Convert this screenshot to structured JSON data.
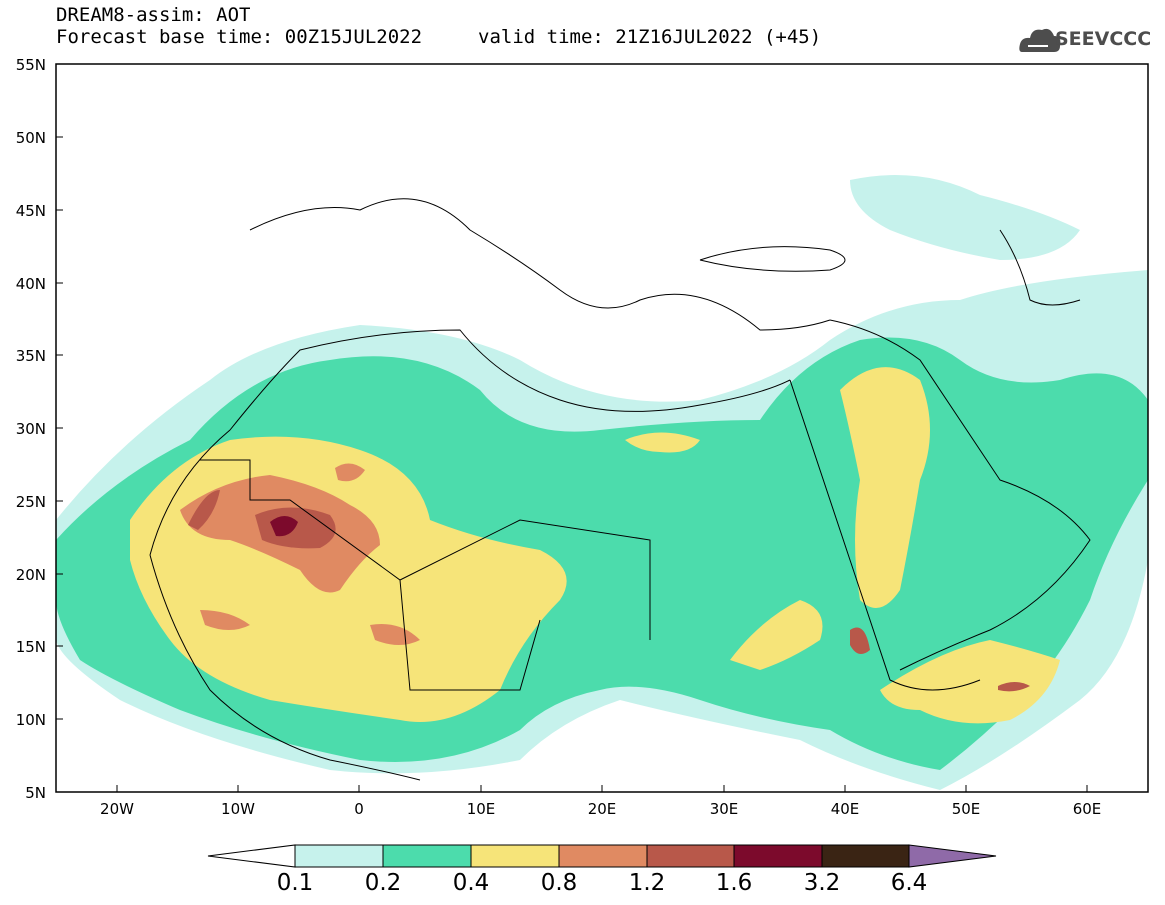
{
  "header": {
    "title": "DREAM8-assim: AOT",
    "base_time": "Forecast base time: 00Z15JUL2022",
    "valid_time": "valid time: 21Z16JUL2022 (+45)"
  },
  "logo": {
    "text": "SEEVCCC",
    "icon": "cloud-logo-icon"
  },
  "axes": {
    "lat_labels": [
      "55N",
      "50N",
      "45N",
      "40N",
      "35N",
      "30N",
      "25N",
      "20N",
      "15N",
      "10N",
      "5N"
    ],
    "lon_labels": [
      "20W",
      "10W",
      "0",
      "10E",
      "20E",
      "30E",
      "40E",
      "50E",
      "60E"
    ]
  },
  "colorbar": {
    "labels": [
      "0.1",
      "0.2",
      "0.4",
      "0.8",
      "1.2",
      "1.6",
      "3.2",
      "6.4"
    ],
    "colors": [
      "#c6f2ec",
      "#4cdcac",
      "#f6e479",
      "#e08a62",
      "#b8584a",
      "#7c0a2c",
      "#3a2414",
      "#8f6aa8"
    ]
  },
  "map_colors": {
    "land_outline": "#000000",
    "aot_01": "#c6f2ec",
    "aot_02": "#4cdcac",
    "aot_04": "#f6e479",
    "aot_08": "#e08a62",
    "aot_12": "#b8584a",
    "aot_16": "#7c0a2c"
  }
}
